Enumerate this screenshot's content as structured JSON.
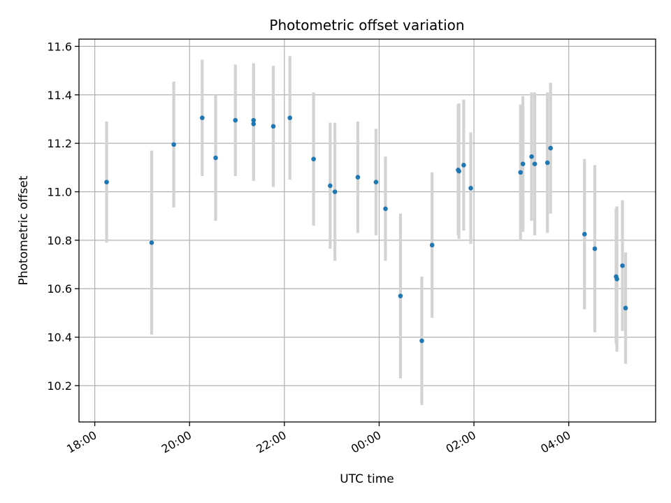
{
  "chart_data": {
    "type": "scatter",
    "title": "Photometric offset variation",
    "xlabel": "UTC time",
    "ylabel": "Photometric offset",
    "x_axis_type": "time",
    "grid": true,
    "colors": {
      "points": "#1f77b4",
      "errorbars": "#d3d3d3",
      "grid": "#b0b0b0"
    },
    "xlim": [
      "17:40",
      "05:50"
    ],
    "ylim": [
      10.05,
      11.63
    ],
    "x_ticks": [
      "18:00",
      "20:00",
      "22:00",
      "00:00",
      "02:00",
      "04:00"
    ],
    "y_ticks": [
      "10.2",
      "10.4",
      "10.6",
      "10.8",
      "11.0",
      "11.2",
      "11.4",
      "11.6"
    ],
    "points": [
      {
        "t": "18:15",
        "y": 11.04,
        "err": 0.25
      },
      {
        "t": "19:12",
        "y": 10.79,
        "err": 0.38
      },
      {
        "t": "19:40",
        "y": 11.195,
        "err": 0.26
      },
      {
        "t": "20:16",
        "y": 11.305,
        "err": 0.24
      },
      {
        "t": "20:33",
        "y": 11.14,
        "err": 0.26
      },
      {
        "t": "20:58",
        "y": 11.295,
        "err": 0.23
      },
      {
        "t": "21:21",
        "y": 11.295,
        "err": 0.235
      },
      {
        "t": "21:21",
        "y": 11.28,
        "err": 0.235
      },
      {
        "t": "21:46",
        "y": 11.27,
        "err": 0.25
      },
      {
        "t": "22:07",
        "y": 11.305,
        "err": 0.255
      },
      {
        "t": "22:37",
        "y": 11.135,
        "err": 0.275
      },
      {
        "t": "22:58",
        "y": 11.025,
        "err": 0.26
      },
      {
        "t": "23:04",
        "y": 11.0,
        "err": 0.285
      },
      {
        "t": "23:33",
        "y": 11.06,
        "err": 0.23
      },
      {
        "t": "23:56",
        "y": 11.04,
        "err": 0.22
      },
      {
        "t": "00:08",
        "y": 10.93,
        "err": 0.215
      },
      {
        "t": "00:27",
        "y": 10.57,
        "err": 0.34
      },
      {
        "t": "00:54",
        "y": 10.385,
        "err": 0.265
      },
      {
        "t": "01:07",
        "y": 10.78,
        "err": 0.3
      },
      {
        "t": "01:40",
        "y": 11.09,
        "err": 0.27
      },
      {
        "t": "01:41",
        "y": 11.085,
        "err": 0.28
      },
      {
        "t": "01:47",
        "y": 11.11,
        "err": 0.27
      },
      {
        "t": "01:56",
        "y": 11.015,
        "err": 0.23
      },
      {
        "t": "02:59",
        "y": 11.08,
        "err": 0.28
      },
      {
        "t": "03:02",
        "y": 11.115,
        "err": 0.28
      },
      {
        "t": "03:13",
        "y": 11.145,
        "err": 0.265
      },
      {
        "t": "03:17",
        "y": 11.115,
        "err": 0.295
      },
      {
        "t": "03:33",
        "y": 11.12,
        "err": 0.29
      },
      {
        "t": "03:37",
        "y": 11.18,
        "err": 0.27
      },
      {
        "t": "04:20",
        "y": 10.825,
        "err": 0.31
      },
      {
        "t": "04:33",
        "y": 10.765,
        "err": 0.345
      },
      {
        "t": "05:00",
        "y": 10.65,
        "err": 0.28
      },
      {
        "t": "05:01",
        "y": 10.64,
        "err": 0.3
      },
      {
        "t": "05:08",
        "y": 10.695,
        "err": 0.27
      },
      {
        "t": "05:12",
        "y": 10.52,
        "err": 0.23
      }
    ]
  }
}
